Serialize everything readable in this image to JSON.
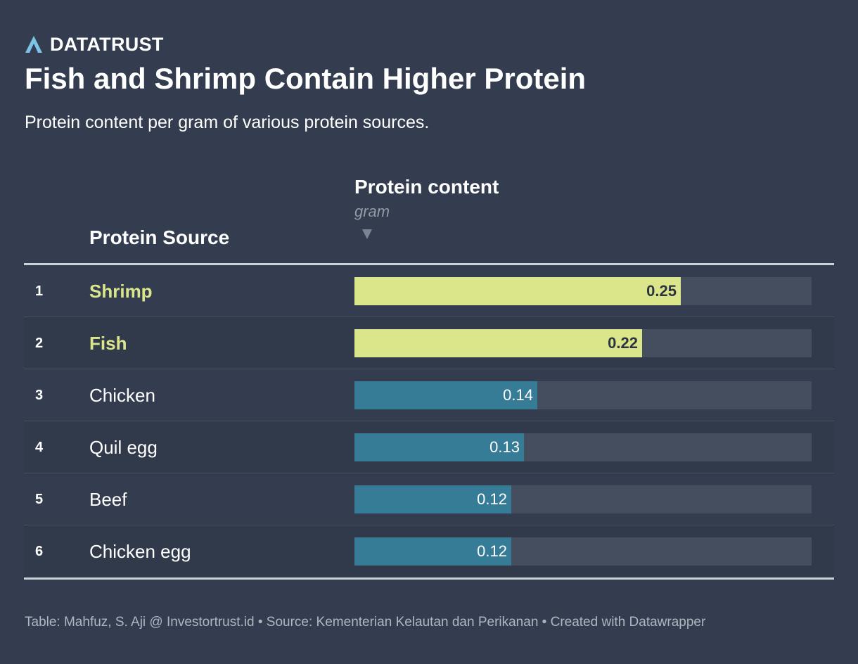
{
  "brand": {
    "name": "DATATRUST",
    "logo_icon": "datatrust-logo-icon",
    "logo_color": "#7cc3e6"
  },
  "title": "Fish and Shrimp Contain Higher Protein",
  "subtitle": "Protein content per gram of various protein sources.",
  "columns": {
    "source_header": "Protein Source",
    "value_header": "Protein content",
    "value_unit": "gram",
    "sort_icon": "sort-descending-icon"
  },
  "colors": {
    "background": "#333d4f",
    "highlight_bar": "#dbe68b",
    "normal_bar": "#367c96",
    "bar_track": "#454e5e",
    "highlight_text": "#dbe68a"
  },
  "chart_data": {
    "type": "bar",
    "title": "Fish and Shrimp Contain Higher Protein",
    "subtitle": "Protein content per gram of various protein sources.",
    "xlabel": "Protein content (gram)",
    "ylabel": "Protein Source",
    "orientation": "horizontal",
    "xlim": [
      0,
      0.35
    ],
    "categories": [
      "Shrimp",
      "Fish",
      "Chicken",
      "Quil egg",
      "Beef",
      "Chicken egg"
    ],
    "values": [
      0.25,
      0.22,
      0.14,
      0.13,
      0.12,
      0.12
    ],
    "rows": [
      {
        "rank": "1",
        "source": "Shrimp",
        "value": 0.25,
        "label": "0.25",
        "highlight": true
      },
      {
        "rank": "2",
        "source": "Fish",
        "value": 0.22,
        "label": "0.22",
        "highlight": true
      },
      {
        "rank": "3",
        "source": "Chicken",
        "value": 0.14,
        "label": "0.14",
        "highlight": false
      },
      {
        "rank": "4",
        "source": "Quil egg",
        "value": 0.13,
        "label": "0.13",
        "highlight": false
      },
      {
        "rank": "5",
        "source": "Beef",
        "value": 0.12,
        "label": "0.12",
        "highlight": false
      },
      {
        "rank": "6",
        "source": "Chicken egg",
        "value": 0.12,
        "label": "0.12",
        "highlight": false
      }
    ]
  },
  "footer": "Table: Mahfuz, S. Aji @ Investortrust.id • Source: Kementerian Kelautan dan Perikanan • Created with Datawrapper"
}
